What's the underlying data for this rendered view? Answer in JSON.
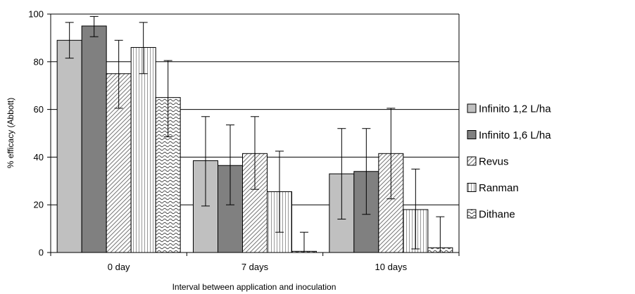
{
  "chart_data": {
    "type": "bar",
    "title": "",
    "xlabel": "Interval between application and inoculation",
    "ylabel": "% efficacy (Abbott)",
    "ylim": [
      0,
      100
    ],
    "yticks": [
      0,
      20,
      40,
      60,
      80,
      100
    ],
    "grid": true,
    "legend_position": "right",
    "categories": [
      "0 day",
      "7 days",
      "10 days"
    ],
    "series": [
      {
        "name": "Infinito 1,2 L/ha",
        "values": [
          89,
          38.5,
          33
        ],
        "error_low": [
          81.5,
          19.5,
          14
        ],
        "error_high": [
          96.5,
          57,
          52
        ],
        "pattern": "solid-light-gray"
      },
      {
        "name": "Infinito 1,6 L/ha",
        "values": [
          95,
          36.5,
          34
        ],
        "error_low": [
          90.5,
          20,
          16
        ],
        "error_high": [
          99,
          53.5,
          52
        ],
        "pattern": "solid-dark-gray"
      },
      {
        "name": "Revus",
        "values": [
          75,
          41.5,
          41.5
        ],
        "error_low": [
          60.5,
          26.5,
          22.5
        ],
        "error_high": [
          89,
          57,
          60.5
        ],
        "pattern": "diagonal-stripes"
      },
      {
        "name": "Ranman",
        "values": [
          86,
          25.5,
          18
        ],
        "error_low": [
          75,
          8.5,
          1.5
        ],
        "error_high": [
          96.5,
          42.5,
          35
        ],
        "pattern": "vertical-stripes"
      },
      {
        "name": "Dithane",
        "values": [
          65,
          0.5,
          2
        ],
        "error_low": [
          48.5,
          0,
          0
        ],
        "error_high": [
          80.5,
          8.5,
          15
        ],
        "pattern": "waves"
      }
    ]
  }
}
